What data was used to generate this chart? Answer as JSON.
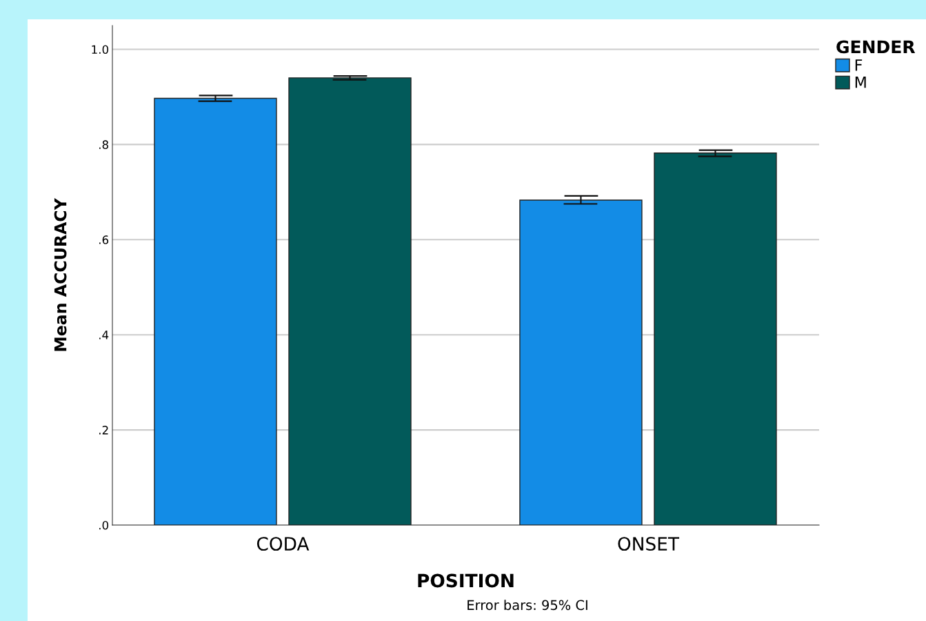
{
  "chart_data": {
    "type": "bar",
    "xlabel": "POSITION",
    "ylabel": "Mean ACCURACY",
    "legend_title": "GENDER",
    "categories": [
      "CODA",
      "ONSET"
    ],
    "series": [
      {
        "name": "F",
        "color": "#138ce6",
        "values": [
          0.897,
          0.683
        ],
        "errors": [
          [
            0.891,
            0.903
          ],
          [
            0.675,
            0.692
          ]
        ]
      },
      {
        "name": "M",
        "color": "#025a5a",
        "values": [
          0.94,
          0.782
        ],
        "errors": [
          [
            0.936,
            0.944
          ],
          [
            0.775,
            0.788
          ]
        ]
      }
    ],
    "ylim": [
      0,
      1.05
    ],
    "yticks": [
      {
        "value": 0,
        "label": ".0"
      },
      {
        "value": 0.2,
        "label": ".2"
      },
      {
        "value": 0.4,
        "label": ".4"
      },
      {
        "value": 0.6,
        "label": ".6"
      },
      {
        "value": 0.8,
        "label": ".8"
      },
      {
        "value": 1.0,
        "label": "1.0"
      }
    ],
    "grid": "y",
    "legend": "top right",
    "annotations": [
      "Error bars: 95% CI"
    ]
  }
}
